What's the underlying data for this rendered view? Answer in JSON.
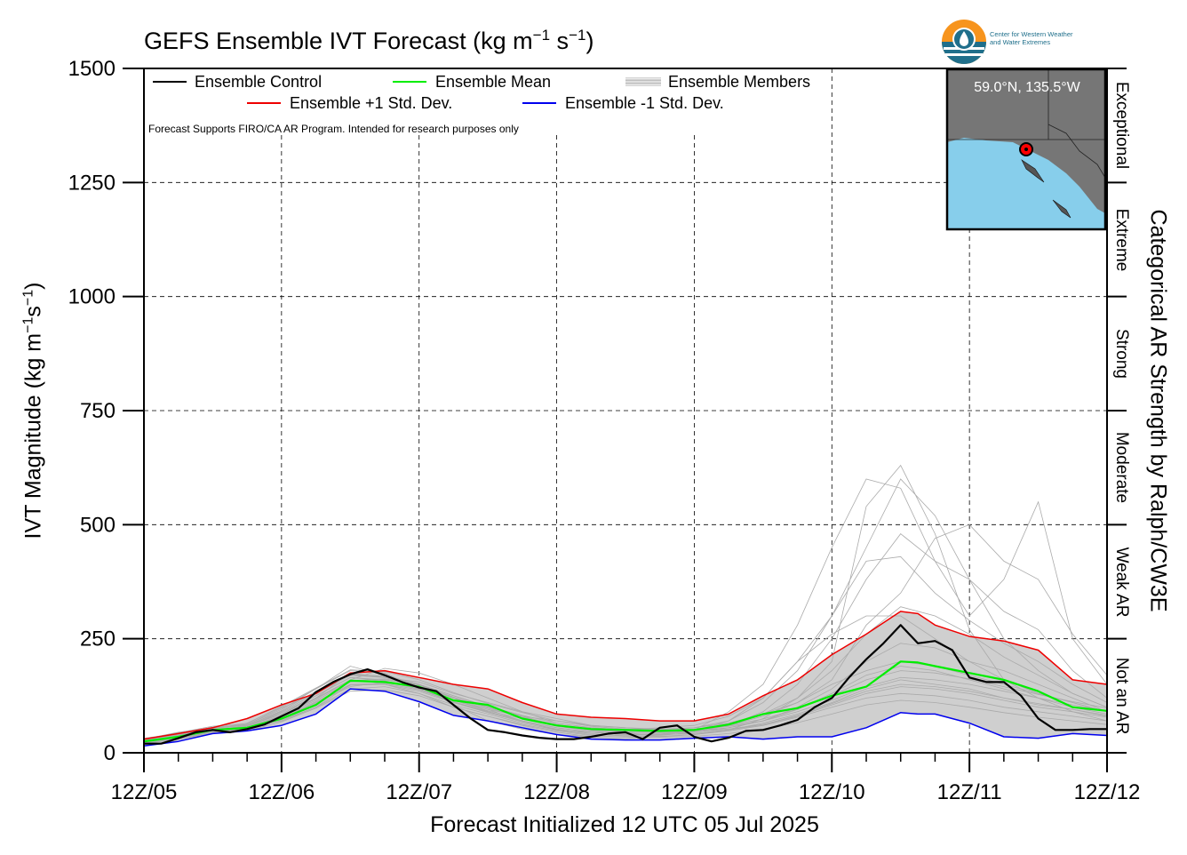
{
  "chart_data": {
    "type": "line",
    "title": "GEFS Ensemble IVT Forecast",
    "title_units": {
      "base": "(kg m",
      "exp1": "−1",
      "mid": " s",
      "exp2": "−1",
      "end": ")"
    },
    "ylabel": {
      "base": "IVT Magnitude (kg m",
      "exp1": "−1",
      "mid": "s",
      "exp2": "−1",
      "end": ")"
    },
    "xlabel": "Forecast Initialized 12 UTC 05 Jul 2025",
    "right_label": "Categorical AR Strength by Ralph/CW3E",
    "note": "Forecast Supports FIRO/CA AR Program. Intended for research purposes only",
    "ylim": [
      0,
      1500
    ],
    "xlim": [
      0,
      7
    ],
    "yticks": [
      {
        "value": 0,
        "label": "0"
      },
      {
        "value": 250,
        "label": "250"
      },
      {
        "value": 500,
        "label": "500"
      },
      {
        "value": 750,
        "label": "750"
      },
      {
        "value": 1000,
        "label": "1000"
      },
      {
        "value": 1250,
        "label": "1250"
      },
      {
        "value": 1500,
        "label": "1500"
      }
    ],
    "xticks": [
      {
        "value": 0,
        "label": "12Z/05"
      },
      {
        "value": 1,
        "label": "12Z/06"
      },
      {
        "value": 2,
        "label": "12Z/07"
      },
      {
        "value": 3,
        "label": "12Z/08"
      },
      {
        "value": 4,
        "label": "12Z/09"
      },
      {
        "value": 5,
        "label": "12Z/10"
      },
      {
        "value": 6,
        "label": "12Z/11"
      },
      {
        "value": 7,
        "label": "12Z/12"
      }
    ],
    "grid": true,
    "legend": [
      {
        "label": "Ensemble Control",
        "color": "#000000",
        "style": "line"
      },
      {
        "label": "Ensemble Mean",
        "color": "#00ee00",
        "style": "line"
      },
      {
        "label": "Ensemble Members",
        "color": "#aaaaaa",
        "style": "multiline"
      },
      {
        "label": "Ensemble +1 Std. Dev.",
        "color": "#ee0000",
        "style": "line"
      },
      {
        "label": "Ensemble -1 Std. Dev.",
        "color": "#0000ee",
        "style": "line"
      }
    ],
    "categories_ar": [
      {
        "label": "Not an AR",
        "from": 0,
        "to": 250
      },
      {
        "label": "Weak AR",
        "from": 250,
        "to": 500
      },
      {
        "label": "Moderate",
        "from": 500,
        "to": 750
      },
      {
        "label": "Strong",
        "from": 750,
        "to": 1000
      },
      {
        "label": "Extreme",
        "from": 1000,
        "to": 1250
      },
      {
        "label": "Exceptional",
        "from": 1250,
        "to": 1500
      }
    ],
    "series": [
      {
        "name": "Ensemble Control",
        "color": "#000000",
        "width": 2.2,
        "x": [
          0,
          0.125,
          0.25,
          0.375,
          0.5,
          0.625,
          0.75,
          0.875,
          1,
          1.125,
          1.25,
          1.375,
          1.5,
          1.625,
          1.75,
          1.875,
          2,
          2.125,
          2.25,
          2.375,
          2.5,
          2.625,
          2.75,
          2.875,
          3,
          3.125,
          3.25,
          3.375,
          3.5,
          3.625,
          3.75,
          3.875,
          4,
          4.125,
          4.25,
          4.375,
          4.5,
          4.625,
          4.75,
          4.875,
          5,
          5.125,
          5.25,
          5.375,
          5.5,
          5.625,
          5.75,
          5.875,
          6,
          6.125,
          6.25,
          6.375,
          6.5,
          6.625,
          6.75,
          6.875,
          7
        ],
        "y": [
          20,
          20,
          32,
          45,
          50,
          45,
          52,
          62,
          80,
          98,
          133,
          155,
          172,
          183,
          170,
          155,
          143,
          135,
          105,
          75,
          50,
          45,
          38,
          33,
          30,
          30,
          35,
          42,
          45,
          30,
          55,
          60,
          35,
          25,
          33,
          48,
          50,
          60,
          72,
          100,
          120,
          165,
          205,
          240,
          280,
          240,
          245,
          225,
          165,
          155,
          155,
          125,
          75,
          50,
          50,
          52,
          52
        ]
      },
      {
        "name": "Ensemble Mean",
        "color": "#00ee00",
        "width": 2.2,
        "x": [
          0,
          0.25,
          0.5,
          0.75,
          1,
          1.25,
          1.5,
          1.75,
          2,
          2.25,
          2.5,
          2.75,
          3,
          3.25,
          3.5,
          3.75,
          4,
          4.25,
          4.5,
          4.75,
          5,
          5.25,
          5.5,
          5.625,
          5.75,
          6,
          6.25,
          6.5,
          6.75,
          7
        ],
        "y": [
          25,
          35,
          50,
          55,
          75,
          105,
          158,
          155,
          145,
          115,
          105,
          75,
          60,
          52,
          50,
          48,
          50,
          62,
          85,
          98,
          125,
          145,
          200,
          198,
          190,
          175,
          160,
          135,
          100,
          92
        ]
      },
      {
        "name": "Ensemble +1 Std. Dev.",
        "color": "#ee0000",
        "width": 1.5,
        "x": [
          0,
          0.25,
          0.5,
          0.75,
          1,
          1.25,
          1.5,
          1.75,
          2,
          2.25,
          2.5,
          2.75,
          3,
          3.25,
          3.5,
          3.75,
          4,
          4.25,
          4.5,
          4.75,
          5,
          5.25,
          5.5,
          5.625,
          5.75,
          6,
          6.25,
          6.5,
          6.75,
          7
        ],
        "y": [
          30,
          42,
          55,
          75,
          105,
          130,
          175,
          180,
          165,
          150,
          140,
          110,
          85,
          78,
          75,
          70,
          70,
          85,
          125,
          160,
          215,
          260,
          310,
          305,
          280,
          255,
          245,
          225,
          160,
          150
        ]
      },
      {
        "name": "Ensemble -1 Std. Dev.",
        "color": "#0000ee",
        "width": 1.5,
        "x": [
          0,
          0.25,
          0.5,
          0.75,
          1,
          1.25,
          1.5,
          1.75,
          2,
          2.25,
          2.5,
          2.75,
          3,
          3.25,
          3.5,
          3.75,
          4,
          4.25,
          4.5,
          4.75,
          5,
          5.25,
          5.5,
          5.625,
          5.75,
          6,
          6.25,
          6.5,
          6.75,
          7
        ],
        "y": [
          15,
          25,
          42,
          48,
          60,
          85,
          140,
          135,
          112,
          82,
          70,
          55,
          40,
          30,
          28,
          28,
          32,
          35,
          30,
          35,
          35,
          55,
          88,
          85,
          85,
          65,
          35,
          32,
          42,
          38
        ]
      }
    ],
    "members_x": [
      0,
      0.25,
      0.5,
      0.75,
      1,
      1.25,
      1.5,
      1.75,
      2,
      2.25,
      2.5,
      2.75,
      3,
      3.25,
      3.5,
      3.75,
      4,
      4.25,
      4.5,
      4.75,
      5,
      5.25,
      5.5,
      5.75,
      6,
      6.25,
      6.5,
      6.75,
      7
    ],
    "members": [
      [
        25,
        38,
        55,
        62,
        95,
        140,
        190,
        170,
        150,
        105,
        70,
        52,
        40,
        35,
        45,
        35,
        40,
        50,
        75,
        120,
        200,
        540,
        630,
        480,
        270,
        160,
        120,
        90,
        70
      ],
      [
        30,
        45,
        55,
        60,
        85,
        120,
        175,
        165,
        155,
        130,
        110,
        90,
        75,
        60,
        55,
        50,
        55,
        70,
        110,
        180,
        300,
        450,
        600,
        520,
        380,
        250,
        180,
        130,
        100
      ],
      [
        20,
        30,
        45,
        55,
        70,
        100,
        150,
        150,
        130,
        100,
        80,
        60,
        45,
        35,
        30,
        40,
        50,
        90,
        150,
        280,
        450,
        600,
        580,
        420,
        300,
        380,
        550,
        250,
        150
      ],
      [
        28,
        40,
        52,
        65,
        100,
        140,
        180,
        175,
        140,
        110,
        90,
        70,
        50,
        45,
        40,
        38,
        45,
        60,
        90,
        150,
        250,
        380,
        480,
        420,
        380,
        310,
        270,
        180,
        120
      ],
      [
        22,
        35,
        48,
        52,
        80,
        120,
        160,
        185,
        175,
        150,
        120,
        90,
        65,
        55,
        50,
        55,
        60,
        80,
        120,
        200,
        300,
        420,
        430,
        350,
        290,
        240,
        200,
        150,
        110
      ],
      [
        32,
        42,
        55,
        60,
        92,
        135,
        170,
        168,
        150,
        120,
        95,
        70,
        50,
        45,
        45,
        48,
        50,
        60,
        80,
        110,
        160,
        280,
        350,
        470,
        500,
        420,
        380,
        260,
        170
      ],
      [
        24,
        36,
        50,
        55,
        75,
        110,
        145,
        155,
        140,
        115,
        95,
        80,
        70,
        60,
        55,
        52,
        55,
        65,
        85,
        120,
        180,
        260,
        320,
        300,
        260,
        210,
        170,
        130,
        100
      ],
      [
        26,
        40,
        52,
        58,
        88,
        125,
        165,
        160,
        150,
        120,
        90,
        70,
        55,
        45,
        40,
        42,
        45,
        55,
        70,
        100,
        140,
        200,
        240,
        230,
        200,
        180,
        150,
        120,
        90
      ],
      [
        21,
        33,
        45,
        50,
        72,
        100,
        140,
        145,
        130,
        105,
        85,
        65,
        50,
        40,
        38,
        40,
        48,
        70,
        120,
        200,
        260,
        300,
        300,
        250,
        200,
        160,
        130,
        110,
        90
      ],
      [
        29,
        42,
        56,
        62,
        98,
        130,
        170,
        165,
        145,
        120,
        100,
        80,
        60,
        50,
        48,
        50,
        55,
        65,
        85,
        110,
        150,
        180,
        200,
        190,
        170,
        150,
        130,
        110,
        90
      ],
      [
        23,
        35,
        48,
        54,
        80,
        115,
        155,
        160,
        150,
        125,
        100,
        80,
        60,
        50,
        45,
        45,
        48,
        55,
        70,
        95,
        130,
        170,
        190,
        180,
        160,
        140,
        120,
        100,
        85
      ],
      [
        27,
        38,
        50,
        58,
        85,
        125,
        165,
        158,
        140,
        115,
        92,
        75,
        58,
        48,
        42,
        40,
        42,
        50,
        65,
        85,
        110,
        140,
        160,
        150,
        140,
        120,
        105,
        95,
        80
      ],
      [
        25,
        36,
        49,
        56,
        82,
        118,
        158,
        162,
        148,
        122,
        98,
        78,
        62,
        52,
        46,
        44,
        46,
        52,
        62,
        80,
        105,
        130,
        145,
        140,
        130,
        115,
        100,
        90,
        78
      ],
      [
        22,
        32,
        44,
        50,
        74,
        108,
        148,
        150,
        135,
        110,
        88,
        68,
        52,
        42,
        36,
        36,
        40,
        48,
        60,
        78,
        100,
        120,
        130,
        125,
        115,
        100,
        90,
        80,
        70
      ],
      [
        28,
        40,
        54,
        60,
        90,
        130,
        172,
        168,
        150,
        125,
        102,
        82,
        65,
        55,
        50,
        48,
        50,
        58,
        70,
        90,
        115,
        145,
        165,
        160,
        150,
        135,
        120,
        105,
        92
      ],
      [
        24,
        34,
        46,
        52,
        76,
        112,
        150,
        152,
        138,
        112,
        90,
        70,
        55,
        45,
        40,
        40,
        42,
        50,
        62,
        82,
        108,
        135,
        150,
        145,
        135,
        120,
        108,
        95,
        82
      ],
      [
        30,
        44,
        58,
        64,
        102,
        142,
        182,
        178,
        160,
        132,
        108,
        88,
        70,
        58,
        52,
        50,
        52,
        60,
        74,
        96,
        125,
        160,
        180,
        175,
        162,
        145,
        128,
        112,
        98
      ],
      [
        20,
        30,
        42,
        48,
        68,
        98,
        135,
        138,
        125,
        100,
        80,
        62,
        48,
        38,
        34,
        34,
        36,
        42,
        52,
        66,
        85,
        105,
        115,
        110,
        100,
        88,
        78,
        70,
        62
      ]
    ]
  },
  "logo_text": [
    "Center for Western Weather",
    "and Water Extremes"
  ],
  "map_label": "59.0°N, 135.5°W",
  "colors": {
    "band_fill": "#cfcfcf",
    "members": "#aaaaaa",
    "ocean": "#87ceeb",
    "land": "#767676",
    "logo_orange": "#f7941d",
    "logo_blue": "#1f6f8b"
  }
}
